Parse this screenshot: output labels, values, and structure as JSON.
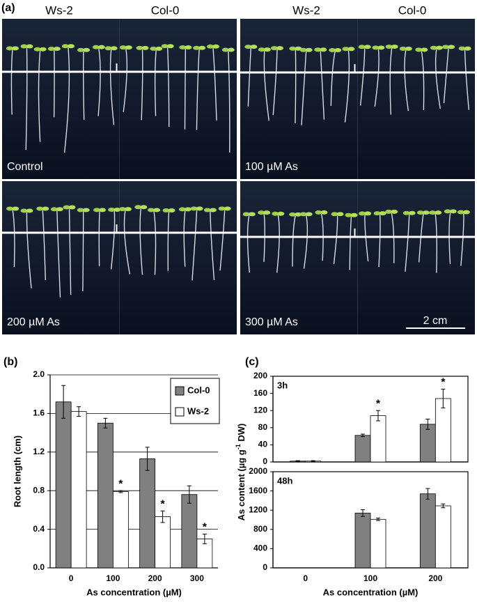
{
  "panel_a": {
    "label": "(a)",
    "column_headers": [
      "Ws-2",
      "Col-0",
      "Ws-2",
      "Col-0"
    ],
    "panels": [
      "Control",
      "100 µM As",
      "200 µM As",
      "300 µM As"
    ],
    "scale_bar": "2 cm"
  },
  "chart_data": [
    {
      "type": "bar",
      "panel_label": "(b)",
      "ylabel": "Root length (cm)",
      "xlabel": "As concentration (µM)",
      "categories": [
        "0",
        "100",
        "200",
        "300"
      ],
      "ylim": [
        0,
        2
      ],
      "yticks": [
        {
          "value": 0,
          "label": "0.0"
        },
        0.4,
        0.8,
        1.2,
        1.6,
        {
          "value": 2,
          "label": "2.0"
        }
      ],
      "grid": true,
      "legend": "top-right",
      "series": [
        {
          "name": "Col-0",
          "color": "#808080",
          "values": [
            1.72,
            1.5,
            1.13,
            0.76
          ],
          "errors": [
            0.17,
            0.05,
            0.12,
            0.09
          ],
          "markers": [
            null,
            null,
            null,
            null
          ]
        },
        {
          "name": "Ws-2",
          "color": "#ffffff",
          "values": [
            1.62,
            0.79,
            0.53,
            0.3
          ],
          "errors": [
            0.05,
            0.01,
            0.06,
            0.05
          ],
          "markers": [
            null,
            "*",
            "*",
            "*"
          ]
        }
      ]
    },
    {
      "type": "bar",
      "panel_label": "(c)",
      "subtitle": "3h",
      "ylabel": [
        "As content (µg g",
        "-1",
        " DW)"
      ],
      "ylim": [
        0,
        200
      ],
      "yticks": [
        0,
        40,
        80,
        120,
        160,
        200
      ],
      "grid": false,
      "series": [
        {
          "color": "#808080",
          "values": [
            2,
            62,
            88
          ],
          "errors": [
            1,
            3,
            12
          ],
          "markers": [
            null,
            null,
            null
          ]
        },
        {
          "color": "#ffffff",
          "values": [
            2,
            108,
            148
          ],
          "errors": [
            1,
            12,
            22
          ],
          "markers": [
            null,
            "*",
            "*"
          ]
        }
      ]
    },
    {
      "type": "bar",
      "subtitle": "48h",
      "xlabel": "As concentration (µM)",
      "categories": [
        "0",
        "100",
        "200"
      ],
      "ylim": [
        0,
        2000
      ],
      "yticks": [
        0,
        400,
        800,
        1200,
        1600,
        2000
      ],
      "grid": false,
      "series": [
        {
          "color": "#808080",
          "values": [
            0,
            1140,
            1540
          ],
          "errors": [
            0,
            70,
            110
          ],
          "markers": [
            null,
            null,
            null
          ]
        },
        {
          "color": "#ffffff",
          "values": [
            0,
            1010,
            1290
          ],
          "errors": [
            0,
            25,
            40
          ],
          "markers": [
            null,
            null,
            null
          ]
        }
      ]
    }
  ]
}
